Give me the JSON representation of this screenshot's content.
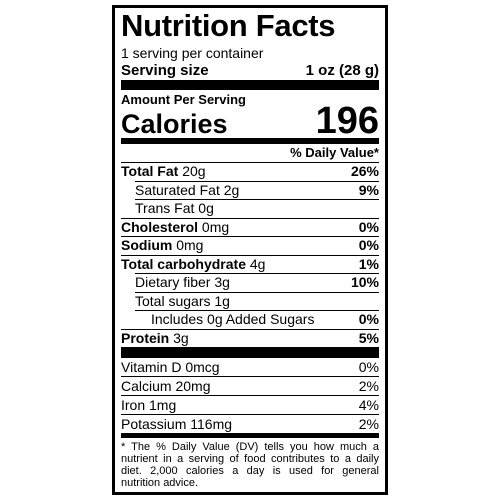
{
  "header": {
    "title": "Nutrition Facts",
    "servings": "1 serving per container",
    "serving_size_label": "Serving size",
    "serving_size": "1 oz (28 g)"
  },
  "calories": {
    "heading": "Amount Per Serving",
    "label": "Calories",
    "value": 196
  },
  "dv_heading": "% Daily Value*",
  "nutrients": [
    {
      "name": "Total Fat",
      "amount": "20g",
      "dv": "26%"
    },
    {
      "name": "Saturated Fat",
      "amount": "2g",
      "dv": "9%"
    },
    {
      "name": "Trans Fat",
      "amount": "0g"
    },
    {
      "name": "Cholesterol",
      "amount": "0mg",
      "dv": "0%"
    },
    {
      "name": "Sodium",
      "amount": "0mg",
      "dv": "0%"
    },
    {
      "name": "Total carbohydrate",
      "amount": "4g",
      "dv": "1%"
    },
    {
      "name": "Dietary fiber",
      "amount": "3g",
      "dv": "10%"
    },
    {
      "name": "Total sugars",
      "amount": "1g"
    },
    {
      "name": "Includes 0g Added Sugars",
      "dv": "0%"
    },
    {
      "name": "Protein",
      "amount": "3g",
      "dv": "5%"
    }
  ],
  "vitamins": [
    {
      "name": "Vitamin D",
      "amount": "0mcg",
      "dv": "0%"
    },
    {
      "name": "Calcium",
      "amount": "20mg",
      "dv": "2%"
    },
    {
      "name": "Iron",
      "amount": "1mg",
      "dv": "4%"
    },
    {
      "name": "Potassium",
      "amount": "116mg",
      "dv": "2%"
    }
  ],
  "footnote": "* The % Daily Value (DV) tells you how much a nutrient in a serving of food contributes to a daily diet. 2,000 calories a day is used for general nutrition advice."
}
